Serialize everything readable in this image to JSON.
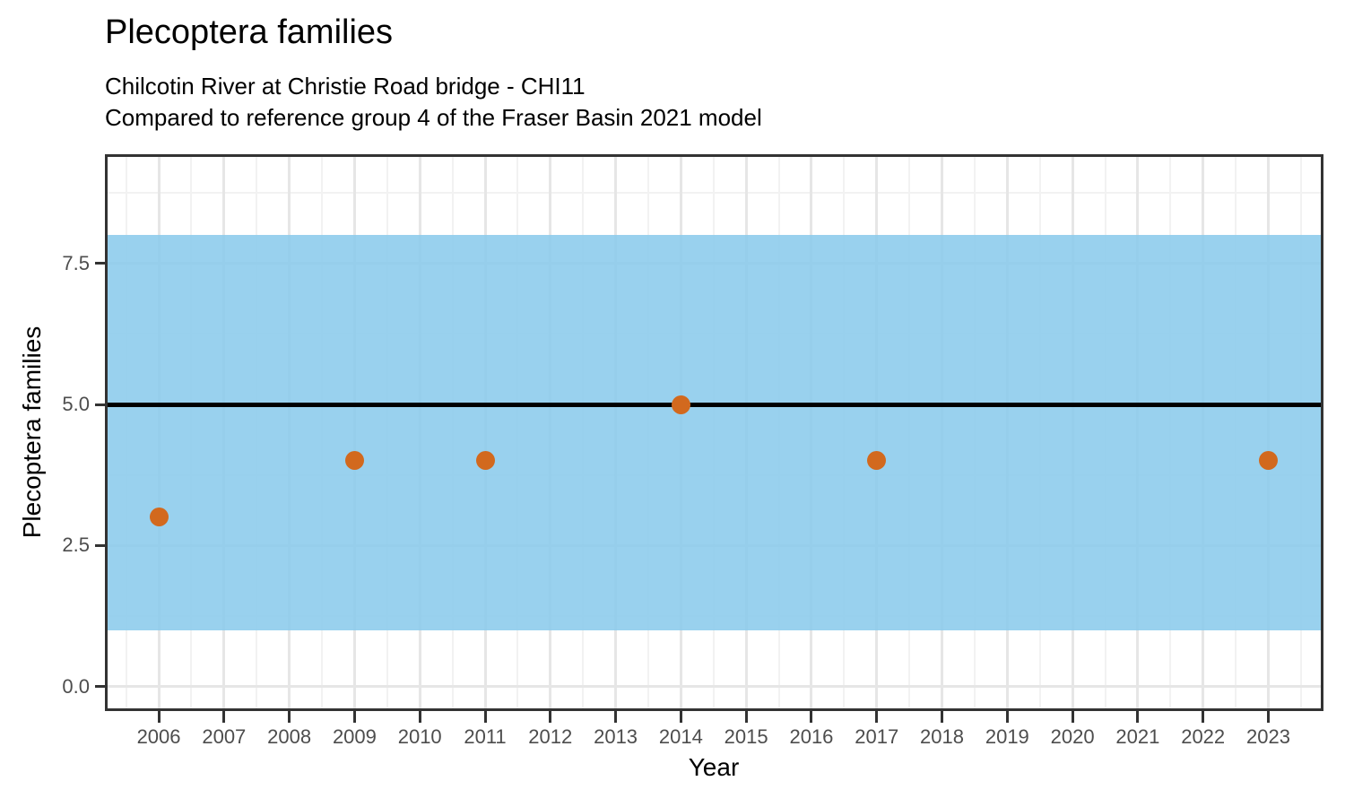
{
  "header": {
    "title": "Plecoptera families",
    "subtitle_line1": "Chilcotin River at Christie Road bridge - CHI11",
    "subtitle_line2": "Compared to reference group 4 of the Fraser Basin 2021 model"
  },
  "chart_data": {
    "type": "scatter",
    "title": "Plecoptera families",
    "xlabel": "Year",
    "ylabel": "Plecoptera families",
    "x": [
      2006,
      2009,
      2011,
      2014,
      2017,
      2023
    ],
    "y": [
      3,
      4,
      4,
      5,
      4,
      4
    ],
    "x_ticks": [
      2006,
      2007,
      2008,
      2009,
      2010,
      2011,
      2012,
      2013,
      2014,
      2015,
      2016,
      2017,
      2018,
      2019,
      2020,
      2021,
      2022,
      2023
    ],
    "x_tick_labels": [
      "2006",
      "2007",
      "2008",
      "2009",
      "2010",
      "2011",
      "2012",
      "2013",
      "2014",
      "2015",
      "2016",
      "2017",
      "2018",
      "2019",
      "2020",
      "2021",
      "2022",
      "2023"
    ],
    "y_ticks": [
      0,
      2.5,
      5,
      7.5
    ],
    "y_tick_labels": [
      "0.0",
      "2.5",
      "5.0",
      "7.5"
    ],
    "xlim": [
      2005.175,
      2023.845
    ],
    "ylim": [
      -0.43,
      9.43
    ],
    "grid": "major and minor, light grey, on",
    "legend": "none",
    "reference_band": {
      "ymin": 1,
      "ymax": 8,
      "fill": "#8BCBEC",
      "opacity": 0.88
    },
    "reference_line": {
      "y": 5,
      "color": "#000000"
    },
    "point_color": "#D2691E",
    "colors": {
      "axis_text": "#4D4D4D",
      "ticks_and_border": "#333333",
      "grid_major": "#E6E6E6",
      "grid_minor": "#F2F2F2"
    }
  }
}
